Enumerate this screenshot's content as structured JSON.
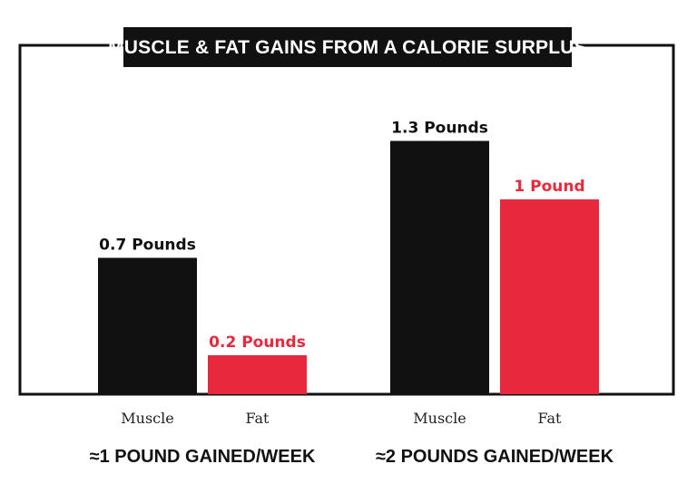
{
  "chart_data": {
    "type": "bar",
    "title": "MUSCLE & FAT GAINS FROM A CALORIE SURPLUS",
    "categories": [
      "Muscle",
      "Fat"
    ],
    "unit": "Pounds",
    "groups": [
      {
        "label": "≈1 POUND GAINED/WEEK",
        "bars": [
          {
            "category": "Muscle",
            "value": 0.7,
            "data_label": "0.7 Pounds"
          },
          {
            "category": "Fat",
            "value": 0.2,
            "data_label": "0.2 Pounds"
          }
        ]
      },
      {
        "label": "≈2 POUNDS GAINED/WEEK",
        "bars": [
          {
            "category": "Muscle",
            "value": 1.3,
            "data_label": "1.3 Pounds"
          },
          {
            "category": "Fat",
            "value": 1.0,
            "data_label": "1 Pound"
          }
        ]
      }
    ],
    "ylim": [
      0,
      1.5
    ],
    "grid": false,
    "legend": "none",
    "colors": {
      "Muscle": "#111111",
      "Fat": "#e8283c"
    }
  }
}
